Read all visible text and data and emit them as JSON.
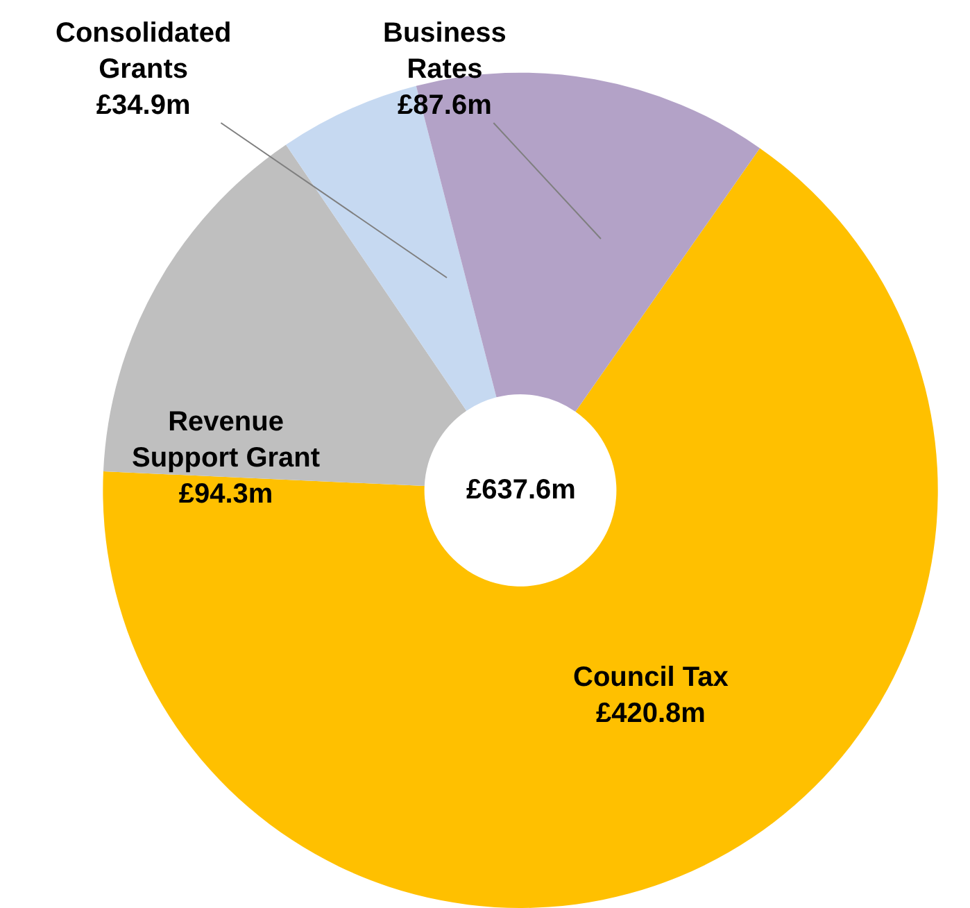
{
  "chart_data": {
    "type": "donut",
    "categories": [
      "Council Tax",
      "Revenue Support Grant",
      "Consolidated Grants",
      "Business Rates"
    ],
    "values": [
      420.8,
      94.3,
      34.9,
      87.6
    ],
    "value_labels": [
      "£420.8m",
      "£94.3m",
      "£34.9m",
      "£87.6m"
    ],
    "colors": [
      "#ffc000",
      "#bfbfbf",
      "#c6d9f1",
      "#b3a2c7"
    ],
    "annotations": [
      "£637.6m"
    ]
  }
}
